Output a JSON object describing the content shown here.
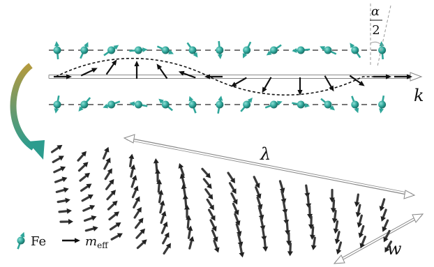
{
  "labels": {
    "alpha_num": "α",
    "alpha_den": "2",
    "k": "k",
    "lambda": "λ",
    "w": "w",
    "legend_fe": "Fe",
    "legend_m": "m",
    "legend_m_sub": "eff"
  },
  "colors": {
    "fe": "#2fa69a",
    "fe_dark": "#1d7c72",
    "arrow": "#111111",
    "dash": "#777777",
    "curved_arrow_top": "#a8913b",
    "curved_arrow_bottom": "#2c9c8e"
  },
  "legend_icons": [
    "fe-atom-icon",
    "effective-moment-arrow-icon"
  ]
}
